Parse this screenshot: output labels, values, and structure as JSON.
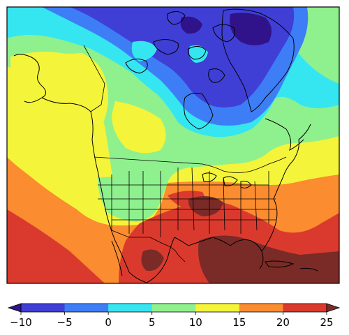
{
  "map": {
    "type": "filled-contour-map",
    "region": "North America",
    "colormap": "jet",
    "basemap": {
      "coastlines": true,
      "country_borders": true,
      "state_borders": true
    },
    "contour_levels": [
      -10,
      -5,
      0,
      5,
      10,
      15,
      20,
      25
    ],
    "bands": [
      {
        "range": [
          -15,
          -10
        ],
        "color": "#30128a"
      },
      {
        "range": [
          -10,
          -5
        ],
        "color": "#3f3fd6"
      },
      {
        "range": [
          -5,
          0
        ],
        "color": "#3d7ef7"
      },
      {
        "range": [
          0,
          5
        ],
        "color": "#35e6f0"
      },
      {
        "range": [
          5,
          10
        ],
        "color": "#8ff08e"
      },
      {
        "range": [
          10,
          15
        ],
        "color": "#f4f43a"
      },
      {
        "range": [
          15,
          20
        ],
        "color": "#fb8c2f"
      },
      {
        "range": [
          20,
          25
        ],
        "color": "#da3a2d"
      },
      {
        "range": [
          25,
          30
        ],
        "color": "#7a2b27"
      }
    ]
  },
  "colorbar": {
    "orientation": "horizontal",
    "extend": "both",
    "tick_labels": [
      "−10",
      "−5",
      "0",
      "5",
      "10",
      "15",
      "20",
      "25"
    ],
    "colors": [
      "#3f3fd6",
      "#3d7ef7",
      "#35e6f0",
      "#8ff08e",
      "#f4f43a",
      "#fb8c2f",
      "#da3a2d"
    ],
    "under_color": "#30128a",
    "over_color": "#7a2b27"
  }
}
